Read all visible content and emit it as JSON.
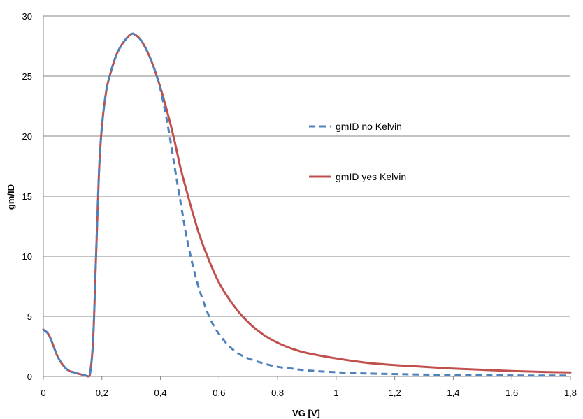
{
  "chart_data": {
    "type": "line",
    "xlabel": "VG [V]",
    "ylabel": "gm/ID",
    "xlim": [
      0,
      1.8
    ],
    "ylim": [
      0,
      30
    ],
    "x_ticks": [
      "0",
      "0,2",
      "0,4",
      "0,6",
      "0,8",
      "1",
      "1,2",
      "1,4",
      "1,6",
      "1,8"
    ],
    "x_tick_values": [
      0,
      0.2,
      0.4,
      0.6,
      0.8,
      1.0,
      1.2,
      1.4,
      1.6,
      1.8
    ],
    "y_ticks": [
      "0",
      "5",
      "10",
      "15",
      "20",
      "25",
      "30"
    ],
    "y_tick_values": [
      0,
      5,
      10,
      15,
      20,
      25,
      30
    ],
    "grid": "horizontal",
    "legend_position": "right",
    "series": [
      {
        "name": "gmID no Kelvin",
        "color": "#4f81bd",
        "style": "dashed",
        "x": [
          0,
          0.02,
          0.05,
          0.08,
          0.11,
          0.14,
          0.155,
          0.16,
          0.17,
          0.18,
          0.19,
          0.2,
          0.215,
          0.23,
          0.25,
          0.27,
          0.29,
          0.3,
          0.31,
          0.33,
          0.35,
          0.37,
          0.39,
          0.41,
          0.43,
          0.45,
          0.47,
          0.49,
          0.52,
          0.55,
          0.58,
          0.62,
          0.66,
          0.7,
          0.75,
          0.8,
          0.85,
          0.9,
          1.0,
          1.1,
          1.2,
          1.3,
          1.4,
          1.5,
          1.6,
          1.7,
          1.8
        ],
        "y": [
          3.9,
          3.4,
          1.6,
          0.6,
          0.3,
          0.1,
          0.0,
          0.3,
          3.0,
          10.0,
          17.0,
          20.8,
          23.8,
          25.3,
          26.8,
          27.7,
          28.3,
          28.5,
          28.5,
          28.1,
          27.3,
          26.2,
          24.8,
          22.8,
          20.2,
          17.2,
          14.3,
          11.5,
          8.3,
          6.0,
          4.3,
          2.9,
          2.0,
          1.5,
          1.1,
          0.8,
          0.65,
          0.5,
          0.35,
          0.25,
          0.2,
          0.15,
          0.12,
          0.1,
          0.08,
          0.07,
          0.07
        ]
      },
      {
        "name": "gmID yes Kelvin",
        "color": "#c0504d",
        "style": "solid",
        "x": [
          0,
          0.02,
          0.05,
          0.08,
          0.11,
          0.14,
          0.155,
          0.16,
          0.17,
          0.18,
          0.19,
          0.2,
          0.215,
          0.23,
          0.25,
          0.27,
          0.29,
          0.3,
          0.31,
          0.33,
          0.35,
          0.37,
          0.39,
          0.41,
          0.43,
          0.45,
          0.47,
          0.5,
          0.53,
          0.56,
          0.6,
          0.65,
          0.7,
          0.75,
          0.8,
          0.85,
          0.9,
          1.0,
          1.1,
          1.2,
          1.3,
          1.4,
          1.5,
          1.6,
          1.7,
          1.8
        ],
        "y": [
          3.9,
          3.4,
          1.6,
          0.6,
          0.3,
          0.1,
          0.0,
          0.3,
          3.0,
          10.0,
          17.0,
          20.8,
          23.8,
          25.3,
          26.8,
          27.7,
          28.3,
          28.5,
          28.5,
          28.1,
          27.3,
          26.2,
          24.8,
          23.2,
          21.4,
          19.4,
          17.2,
          14.5,
          12.0,
          10.0,
          7.8,
          5.9,
          4.5,
          3.5,
          2.8,
          2.3,
          1.95,
          1.5,
          1.15,
          0.95,
          0.8,
          0.65,
          0.55,
          0.45,
          0.38,
          0.33
        ]
      }
    ]
  }
}
